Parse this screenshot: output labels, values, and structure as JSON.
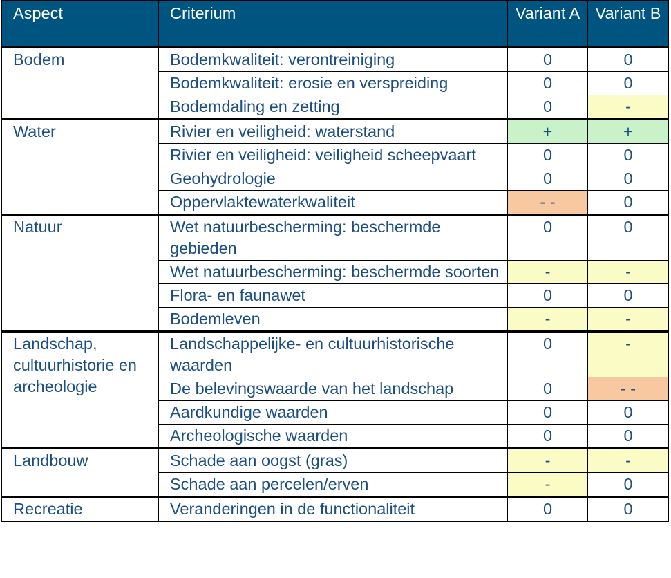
{
  "header": {
    "aspect": "Aspect",
    "criterium": "Criterium",
    "variant_a": "Variant A",
    "variant_b": "Variant B"
  },
  "score_colors": {
    "+": "#c9f2c9",
    "-": "#fbfbc5",
    "- -": "#f8c9a0",
    "0": "#ffffff"
  },
  "groups": [
    {
      "aspect": "Bodem",
      "rows": [
        {
          "criterium": "Bodemkwaliteit: verontreiniging",
          "a": "0",
          "b": "0"
        },
        {
          "criterium": "Bodemkwaliteit: erosie en verspreiding",
          "a": "0",
          "b": "0"
        },
        {
          "criterium": "Bodemdaling en zetting",
          "a": "0",
          "b": "-"
        }
      ]
    },
    {
      "aspect": "Water",
      "rows": [
        {
          "criterium": "Rivier en veiligheid: waterstand",
          "a": "+",
          "b": "+"
        },
        {
          "criterium": "Rivier en veiligheid: veiligheid scheepvaart",
          "a": "0",
          "b": "0"
        },
        {
          "criterium": "Geohydrologie",
          "a": "0",
          "b": "0"
        },
        {
          "criterium": "Oppervlaktewaterkwaliteit",
          "a": "- -",
          "b": "0"
        }
      ]
    },
    {
      "aspect": "Natuur",
      "rows": [
        {
          "criterium": "Wet natuurbescherming: beschermde gebieden",
          "a": "0",
          "b": "0"
        },
        {
          "criterium": "Wet natuurbescherming: beschermde soorten",
          "a": "-",
          "b": "-"
        },
        {
          "criterium": "Flora- en faunawet",
          "a": "0",
          "b": "0"
        },
        {
          "criterium": "Bodemleven",
          "a": "-",
          "b": "-"
        }
      ]
    },
    {
      "aspect": "Landschap, cultuurhistorie en archeologie",
      "rows": [
        {
          "criterium": "Landschappelijke- en cultuurhistorische waarden",
          "a": "0",
          "b": "-"
        },
        {
          "criterium": "De belevingswaarde van het landschap",
          "a": "0",
          "b": "- -"
        },
        {
          "criterium": "Aardkundige waarden",
          "a": "0",
          "b": "0"
        },
        {
          "criterium": "Archeologische waarden",
          "a": "0",
          "b": "0"
        }
      ]
    },
    {
      "aspect": "Landbouw",
      "rows": [
        {
          "criterium": "Schade aan oogst (gras)",
          "a": "-",
          "b": "-"
        },
        {
          "criterium": "Schade aan percelen/erven",
          "a": "-",
          "b": "0"
        }
      ]
    },
    {
      "aspect": "Recreatie",
      "rows": [
        {
          "criterium": "Veranderingen in de functionaliteit",
          "a": "0",
          "b": "0"
        }
      ]
    }
  ]
}
